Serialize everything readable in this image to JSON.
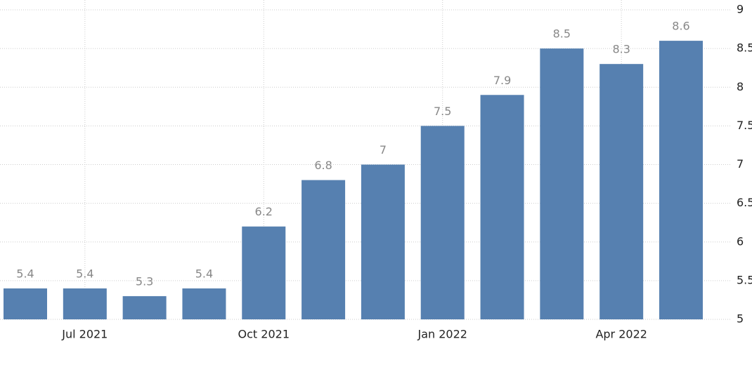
{
  "chart_data": {
    "type": "bar",
    "categories": [
      null,
      "Jul 2021",
      null,
      null,
      "Oct 2021",
      null,
      null,
      "Jan 2022",
      null,
      null,
      "Apr 2022",
      null
    ],
    "values": [
      5.4,
      5.4,
      5.3,
      5.4,
      6.2,
      6.8,
      7,
      7.5,
      7.9,
      8.5,
      8.3,
      8.6
    ],
    "color": "#5680b0",
    "ylim": [
      5,
      9
    ],
    "yticks": [
      5,
      5.5,
      6,
      6.5,
      7,
      7.5,
      8,
      8.5,
      9
    ],
    "grid": true
  }
}
